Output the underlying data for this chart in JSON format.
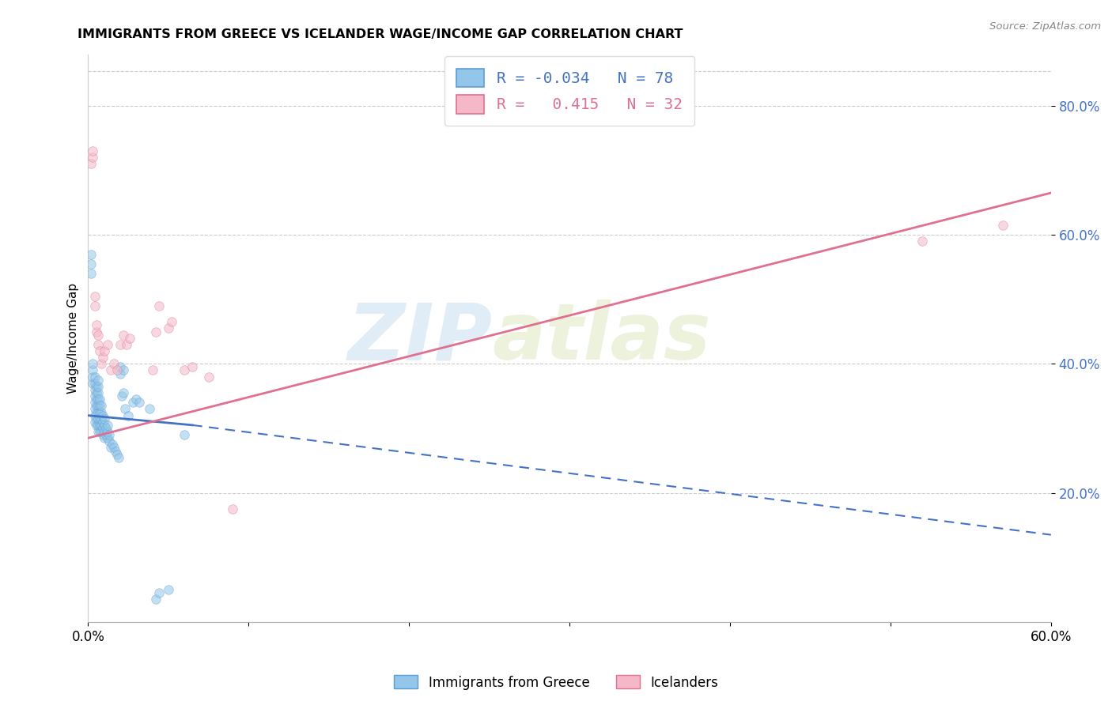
{
  "title": "IMMIGRANTS FROM GREECE VS ICELANDER WAGE/INCOME GAP CORRELATION CHART",
  "source": "Source: ZipAtlas.com",
  "ylabel": "Wage/Income Gap",
  "x_min": 0.0,
  "x_max": 0.6,
  "y_min": 0.0,
  "y_max": 0.88,
  "x_ticks": [
    0.0,
    0.1,
    0.2,
    0.3,
    0.4,
    0.5,
    0.6
  ],
  "x_tick_labels": [
    "0.0%",
    "",
    "",
    "",
    "",
    "",
    "60.0%"
  ],
  "y_ticks": [
    0.2,
    0.4,
    0.6,
    0.8
  ],
  "y_tick_labels": [
    "20.0%",
    "40.0%",
    "60.0%",
    "80.0%"
  ],
  "blue_scatter": {
    "x": [
      0.002,
      0.002,
      0.002,
      0.003,
      0.003,
      0.003,
      0.003,
      0.004,
      0.004,
      0.004,
      0.004,
      0.004,
      0.004,
      0.004,
      0.004,
      0.005,
      0.005,
      0.005,
      0.005,
      0.005,
      0.005,
      0.005,
      0.006,
      0.006,
      0.006,
      0.006,
      0.006,
      0.006,
      0.006,
      0.006,
      0.006,
      0.007,
      0.007,
      0.007,
      0.007,
      0.007,
      0.007,
      0.008,
      0.008,
      0.008,
      0.008,
      0.008,
      0.009,
      0.009,
      0.009,
      0.009,
      0.01,
      0.01,
      0.01,
      0.01,
      0.011,
      0.011,
      0.012,
      0.012,
      0.012,
      0.013,
      0.013,
      0.014,
      0.015,
      0.016,
      0.017,
      0.018,
      0.019,
      0.02,
      0.02,
      0.021,
      0.022,
      0.022,
      0.023,
      0.025,
      0.028,
      0.03,
      0.032,
      0.038,
      0.042,
      0.044,
      0.05,
      0.06
    ],
    "y": [
      0.54,
      0.555,
      0.57,
      0.37,
      0.38,
      0.39,
      0.4,
      0.31,
      0.32,
      0.33,
      0.34,
      0.35,
      0.36,
      0.37,
      0.38,
      0.305,
      0.315,
      0.325,
      0.335,
      0.345,
      0.355,
      0.365,
      0.295,
      0.305,
      0.315,
      0.325,
      0.335,
      0.345,
      0.355,
      0.365,
      0.375,
      0.295,
      0.305,
      0.315,
      0.325,
      0.335,
      0.345,
      0.295,
      0.305,
      0.315,
      0.325,
      0.335,
      0.29,
      0.3,
      0.31,
      0.32,
      0.285,
      0.295,
      0.305,
      0.315,
      0.29,
      0.3,
      0.285,
      0.295,
      0.305,
      0.28,
      0.29,
      0.27,
      0.275,
      0.27,
      0.265,
      0.26,
      0.255,
      0.385,
      0.395,
      0.35,
      0.355,
      0.39,
      0.33,
      0.32,
      0.34,
      0.345,
      0.34,
      0.33,
      0.035,
      0.045,
      0.05,
      0.29
    ]
  },
  "pink_scatter": {
    "x": [
      0.002,
      0.003,
      0.003,
      0.004,
      0.004,
      0.005,
      0.005,
      0.006,
      0.006,
      0.007,
      0.008,
      0.009,
      0.01,
      0.012,
      0.014,
      0.016,
      0.018,
      0.02,
      0.022,
      0.024,
      0.026,
      0.04,
      0.042,
      0.044,
      0.05,
      0.052,
      0.06,
      0.065,
      0.075,
      0.09,
      0.52,
      0.57
    ],
    "y": [
      0.71,
      0.72,
      0.73,
      0.49,
      0.505,
      0.45,
      0.46,
      0.43,
      0.445,
      0.42,
      0.4,
      0.41,
      0.42,
      0.43,
      0.39,
      0.4,
      0.39,
      0.43,
      0.445,
      0.43,
      0.44,
      0.39,
      0.45,
      0.49,
      0.455,
      0.465,
      0.39,
      0.395,
      0.38,
      0.175,
      0.59,
      0.615
    ]
  },
  "blue_line_solid": {
    "x": [
      0.0,
      0.065
    ],
    "y": [
      0.32,
      0.305
    ]
  },
  "blue_line_dashed": {
    "x": [
      0.065,
      0.6
    ],
    "y": [
      0.305,
      0.135
    ]
  },
  "pink_line": {
    "x": [
      0.0,
      0.6
    ],
    "y": [
      0.285,
      0.665
    ]
  },
  "blue_color": "#93c6e8",
  "blue_edge_color": "#5b9bd5",
  "blue_line_color": "#4472C4",
  "pink_color": "#f4b8c8",
  "pink_edge_color": "#e07090",
  "pink_line_color": "#e07090",
  "scatter_alpha": 0.55,
  "scatter_size": 70,
  "legend_R_blue": "-0.034",
  "legend_N_blue": "78",
  "legend_R_pink": "0.415",
  "legend_N_pink": "32",
  "watermark_zip": "ZIP",
  "watermark_atlas": "atlas",
  "bottom_legend_blue": "Immigrants from Greece",
  "bottom_legend_pink": "Icelanders"
}
